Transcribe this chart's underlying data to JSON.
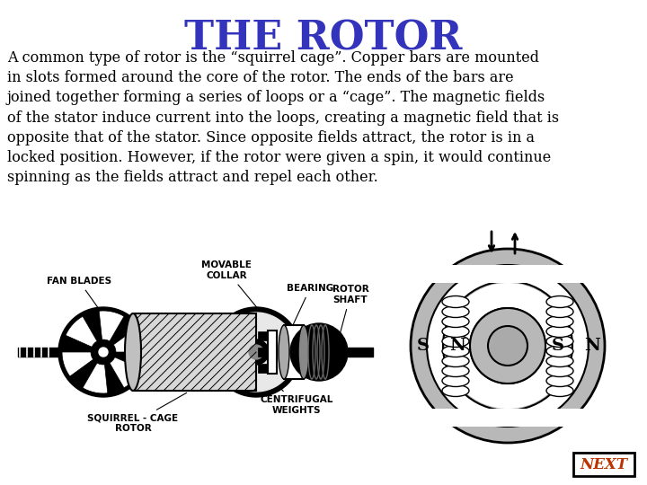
{
  "title": "THE ROTOR",
  "title_color": "#3333BB",
  "title_fontsize": 32,
  "body_text": "A common type of rotor is the “squirrel cage”. Copper bars are mounted\nin slots formed around the core of the rotor. The ends of the bars are\njoined together forming a series of loops or a “cage”. The magnetic fields\nof the stator induce current into the loops, creating a magnetic field that is\nopposite that of the stator. Since opposite fields attract, the rotor is in a\nlocked position. However, if the rotor were given a spin, it would continue\nspinning as the fields attract and repel each other.",
  "body_fontsize": 11.5,
  "body_color": "#000000",
  "background_color": "#ffffff",
  "next_text": "NEXT",
  "next_color": "#BB3300",
  "next_fontsize": 12,
  "fig_width": 7.2,
  "fig_height": 5.4,
  "dpi": 100
}
